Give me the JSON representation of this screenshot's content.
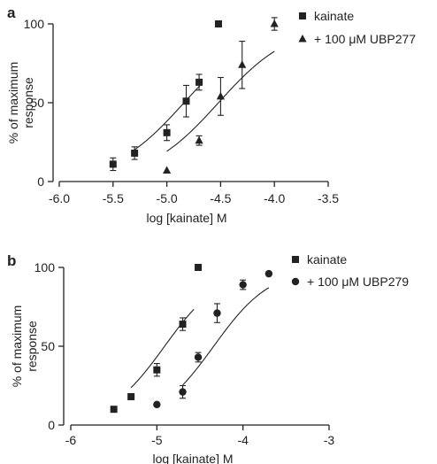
{
  "chart_data": [
    {
      "type": "scatter",
      "panel": "a",
      "xlabel": "log [kainate] M",
      "ylabel": "% of maximum response",
      "xlim": [
        -6.0,
        -3.5
      ],
      "ylim": [
        0,
        100
      ],
      "xticks": [
        -6.0,
        -5.5,
        -5.0,
        -4.5,
        -4.0,
        -3.5
      ],
      "xtick_labels": [
        "-6.0",
        "-5.5",
        "-5.0",
        "-4.5",
        "-4.0",
        "-3.5"
      ],
      "yticks": [
        0,
        50,
        100
      ],
      "ytick_labels": [
        "0",
        "50",
        "100"
      ],
      "legend_position": "top-right",
      "series": [
        {
          "name": "kainate",
          "marker": "square",
          "color": "#222222",
          "x": [
            -5.5,
            -5.3,
            -5.0,
            -4.82,
            -4.7,
            -4.52
          ],
          "y": [
            11,
            18,
            31,
            51,
            63,
            100
          ],
          "err": [
            4,
            4,
            5,
            10,
            5,
            0
          ],
          "fit": {
            "ec50_log": -4.84,
            "hill": 1.3,
            "x_range": [
              -5.32,
              -4.67
            ]
          }
        },
        {
          "name": "+ 100 μM UBP277",
          "marker": "triangle",
          "color": "#222222",
          "x": [
            -5.0,
            -4.7,
            -4.5,
            -4.3,
            -4.0
          ],
          "y": [
            7,
            26,
            54,
            74,
            100
          ],
          "err": [
            0,
            3,
            12,
            15,
            4
          ],
          "fit": {
            "ec50_log": -4.52,
            "hill": 1.3,
            "x_range": [
              -5.0,
              -4.0
            ]
          }
        }
      ]
    },
    {
      "type": "scatter",
      "panel": "b",
      "xlabel": "log [kainate] M",
      "ylabel": "% of maximum response",
      "xlim": [
        -6,
        -3
      ],
      "ylim": [
        0,
        100
      ],
      "xticks": [
        -6,
        -5,
        -4,
        -3
      ],
      "xtick_labels": [
        "-6",
        "-5",
        "-4",
        "-3"
      ],
      "yticks": [
        0,
        50,
        100
      ],
      "ytick_labels": [
        "0",
        "50",
        "100"
      ],
      "legend_position": "top-right",
      "series": [
        {
          "name": "kainate",
          "marker": "square",
          "color": "#222222",
          "x": [
            -5.5,
            -5.3,
            -5.0,
            -4.7,
            -4.52
          ],
          "y": [
            10,
            18,
            35,
            64,
            100
          ],
          "err": [
            0,
            0,
            4,
            4,
            0
          ],
          "fit": {
            "ec50_log": -4.91,
            "hill": 1.3,
            "x_range": [
              -5.3,
              -4.57
            ]
          }
        },
        {
          "name": "+ 100 μM UBP279",
          "marker": "circle",
          "color": "#222222",
          "x": [
            -5.0,
            -4.7,
            -4.52,
            -4.3,
            -4.0,
            -3.7
          ],
          "y": [
            13,
            21,
            43,
            71,
            89,
            96
          ],
          "err": [
            0,
            4,
            3,
            6,
            3,
            0
          ],
          "fit": {
            "ec50_log": -4.34,
            "hill": 1.3,
            "x_range": [
              -4.7,
              -3.7
            ]
          }
        }
      ]
    }
  ]
}
